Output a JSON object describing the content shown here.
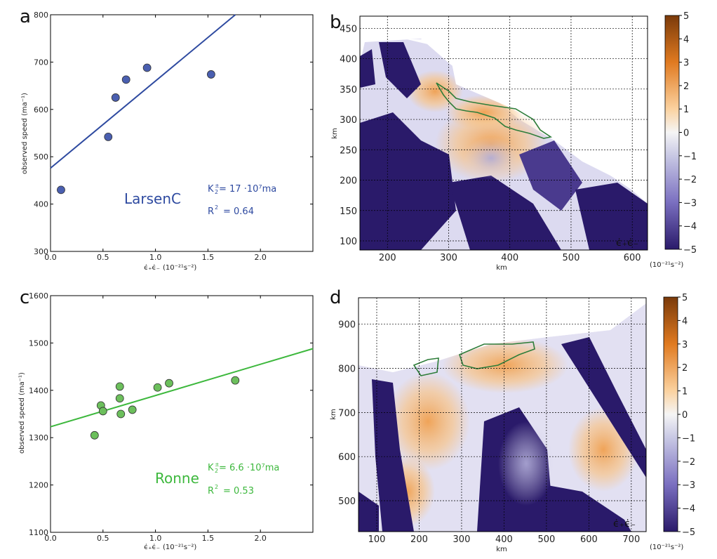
{
  "panels": {
    "a": "a",
    "b": "b",
    "c": "c",
    "d": "d"
  },
  "chart_data": [
    {
      "panel": "a",
      "type": "scatter",
      "xlabel_main": "ϵ̇₊ϵ̇₋",
      "xlabel_unit": "(10⁻²¹s⁻²)",
      "ylabel": "observed speed (ma⁻¹)",
      "xlim": [
        0.0,
        2.5
      ],
      "ylim": [
        300,
        800
      ],
      "xticks": [
        "0.0",
        "0.5",
        "1.0",
        "1.5",
        "2.0"
      ],
      "yticks": [
        "300",
        "400",
        "500",
        "600",
        "700",
        "800"
      ],
      "x": [
        0.1,
        0.55,
        0.62,
        0.72,
        0.92,
        1.53
      ],
      "y": [
        430,
        542,
        625,
        663,
        688,
        674
      ],
      "fit_line": {
        "intercept": 476,
        "slope": 184
      },
      "color": "#2e4aa0",
      "marker_fill": "#4a5fb0",
      "name_label": "LarsenC",
      "k_label": "K",
      "k_value": "= 17 ·10⁷ma",
      "r2_label": "R",
      "r2_value": "= 0.64"
    },
    {
      "panel": "c",
      "type": "scatter",
      "xlabel_main": "ϵ̇₊ϵ̇₋",
      "xlabel_unit": "(10⁻²¹s⁻²)",
      "ylabel": "observed speed (ma⁻¹)",
      "xlim": [
        0.0,
        2.5
      ],
      "ylim": [
        1100,
        1600
      ],
      "xticks": [
        "0.0",
        "0.5",
        "1.0",
        "1.5",
        "2.0"
      ],
      "yticks": [
        "1100",
        "1200",
        "1300",
        "1400",
        "1500",
        "1600"
      ],
      "x": [
        0.42,
        0.48,
        0.5,
        0.66,
        0.66,
        0.67,
        0.78,
        1.02,
        1.13,
        1.76
      ],
      "y": [
        1305,
        1368,
        1356,
        1408,
        1383,
        1350,
        1359,
        1406,
        1415,
        1421
      ],
      "fit_line": {
        "intercept": 1323,
        "slope": 66
      },
      "color": "#3db83d",
      "marker_fill": "#6cbf5c",
      "name_label": "Ronne",
      "k_label": "K",
      "k_value": "= 6.6 ·10⁷ma",
      "r2_label": "R",
      "r2_value": "= 0.53"
    },
    {
      "panel": "b",
      "type": "heatmap",
      "xlabel": "km",
      "ylabel": "km",
      "xticks": [
        "200",
        "300",
        "400",
        "500",
        "600"
      ],
      "yticks": [
        "100",
        "150",
        "200",
        "250",
        "300",
        "350",
        "400",
        "450"
      ],
      "xlim": [
        155,
        625
      ],
      "ylim": [
        85,
        470
      ],
      "colorbar_ticks": [
        "5",
        "4",
        "3",
        "2",
        "1",
        "0",
        "−1",
        "−2",
        "−3",
        "−4",
        "−5"
      ],
      "colorbar_unit": "(10⁻²¹s⁻²)",
      "field_label": "ϵ̇₊ϵ̇₋"
    },
    {
      "panel": "d",
      "type": "heatmap",
      "xlabel": "km",
      "ylabel": "km",
      "xticks": [
        "100",
        "200",
        "300",
        "400",
        "500",
        "600",
        "700"
      ],
      "yticks": [
        "500",
        "600",
        "700",
        "800",
        "900"
      ],
      "xlim": [
        57,
        735
      ],
      "ylim": [
        430,
        960
      ],
      "colorbar_ticks": [
        "5",
        "4",
        "3",
        "2",
        "1",
        "0",
        "−1",
        "−2",
        "−3",
        "−4",
        "−5"
      ],
      "colorbar_unit": "(10⁻²¹s⁻²)",
      "field_label": "ϵ̇₊ϵ̇₋"
    }
  ],
  "colors": {
    "negative_deep": "#2a1a6a",
    "negative_mid": "#8a86c4",
    "neutral": "#f5f5f5",
    "positive_mid": "#f0a050",
    "positive_deep": "#7a3a0a",
    "outline": "#2e7d3a"
  }
}
